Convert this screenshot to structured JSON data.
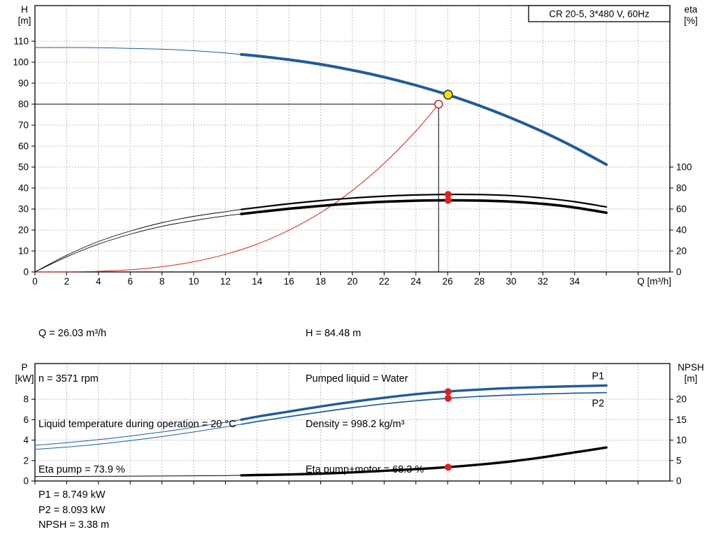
{
  "colors": {
    "curve_blue": "#1f5c99",
    "curve_black": "#000000",
    "curve_red": "#dd2222",
    "marker_red": "#e02020",
    "duty_yellow": "#ffe000",
    "grid": "#aaaaaa",
    "text": "#000000"
  },
  "readout_top": {
    "left": [
      "Q = 26.03 m³/h",
      "n = 3571 rpm",
      "Liquid temperature during operation = 20 °C",
      "Eta pump = 73.9 %"
    ],
    "right": [
      "H = 84.48 m",
      "Pumped liquid = Water",
      "Density = 998.2 kg/m³",
      "Eta pump+motor = 68.3 %"
    ]
  },
  "readout_bottom": [
    "P1 = 8.749 kW",
    "P2 = 8.093 kW",
    "NPSH = 3.38 m"
  ],
  "chart_data": [
    {
      "type": "line",
      "title": "CR 20-5, 3*480 V, 60Hz",
      "x_axis": {
        "label": "Q [m³/h]",
        "min": 0,
        "max": 40,
        "grid_step": 2,
        "label_max": 34,
        "tick_max": 38
      },
      "y_left": {
        "label": [
          "H",
          "[m]"
        ],
        "min": 0,
        "max": 127,
        "step": 10,
        "tick_max": 110
      },
      "y_right": {
        "label": [
          "eta",
          "[%]"
        ],
        "ticks": [
          0,
          20,
          40,
          60,
          80,
          100
        ],
        "to_left": 0.5
      },
      "series": [
        {
          "name": "head-curve",
          "color": "curve_blue",
          "axis": "left",
          "thin_to": 13,
          "width_thin": 1,
          "width_thick": 4,
          "points": [
            [
              0,
              107
            ],
            [
              2,
              107
            ],
            [
              4,
              106.9
            ],
            [
              6,
              106.6
            ],
            [
              8,
              106.2
            ],
            [
              10,
              105.5
            ],
            [
              12,
              104.4
            ],
            [
              13,
              103.7
            ],
            [
              14,
              103
            ],
            [
              16,
              101.2
            ],
            [
              18,
              99
            ],
            [
              20,
              96.2
            ],
            [
              22,
              92.9
            ],
            [
              24,
              89
            ],
            [
              26,
              84.5
            ],
            [
              28,
              79.3
            ],
            [
              30,
              73.4
            ],
            [
              32,
              66.8
            ],
            [
              34,
              59.4
            ],
            [
              36,
              51.2
            ]
          ]
        },
        {
          "name": "system-curve",
          "color": "curve_red",
          "axis": "left",
          "width_thin": 1,
          "width_thick": 1,
          "points": [
            [
              0,
              0
            ],
            [
              2,
              0.04
            ],
            [
              4,
              0.31
            ],
            [
              6,
              1.05
            ],
            [
              8,
              2.49
            ],
            [
              10,
              4.86
            ],
            [
              12,
              8.4
            ],
            [
              14,
              13.3
            ],
            [
              16,
              19.9
            ],
            [
              18,
              28.3
            ],
            [
              20,
              38.9
            ],
            [
              22,
              51.8
            ],
            [
              24,
              67.2
            ],
            [
              25.43,
              80
            ]
          ]
        },
        {
          "name": "eta-pump-curve",
          "color": "curve_black",
          "axis": "right",
          "thin_to": 13,
          "width_thin": 0.9,
          "width_thick": 2.2,
          "points": [
            [
              0,
              0
            ],
            [
              2,
              16
            ],
            [
              4,
              29
            ],
            [
              6,
              39
            ],
            [
              8,
              47
            ],
            [
              10,
              53
            ],
            [
              12,
              57.5
            ],
            [
              13,
              59.6
            ],
            [
              14,
              61.5
            ],
            [
              16,
              65
            ],
            [
              18,
              68
            ],
            [
              20,
              70.5
            ],
            [
              22,
              72.3
            ],
            [
              24,
              73.4
            ],
            [
              26,
              73.9
            ],
            [
              28,
              73.8
            ],
            [
              30,
              72.8
            ],
            [
              32,
              70.5
            ],
            [
              34,
              67
            ],
            [
              36,
              62
            ]
          ]
        },
        {
          "name": "eta-pump-motor-curve",
          "color": "curve_black",
          "axis": "right",
          "thin_to": 13,
          "width_thin": 0.9,
          "width_thick": 3.6,
          "points": [
            [
              0,
              0
            ],
            [
              2,
              14.5
            ],
            [
              4,
              26.5
            ],
            [
              6,
              36
            ],
            [
              8,
              43.5
            ],
            [
              10,
              49
            ],
            [
              12,
              53.5
            ],
            [
              13,
              55.3
            ],
            [
              14,
              57
            ],
            [
              16,
              60.3
            ],
            [
              18,
              63
            ],
            [
              20,
              65.3
            ],
            [
              22,
              66.9
            ],
            [
              24,
              67.9
            ],
            [
              26,
              68.3
            ],
            [
              28,
              68.1
            ],
            [
              30,
              67.1
            ],
            [
              32,
              64.9
            ],
            [
              34,
              61.5
            ],
            [
              36,
              56.5
            ]
          ]
        }
      ],
      "guides": {
        "h": 80,
        "q": 25.43
      },
      "markers": [
        {
          "kind": "red-dot",
          "axis": "right",
          "q": 26.03,
          "v": 73.9
        },
        {
          "kind": "red-dot",
          "axis": "right",
          "q": 26.03,
          "v": 68.3
        },
        {
          "kind": "open-red",
          "axis": "left",
          "q": 25.43,
          "v": 80
        },
        {
          "kind": "duty-yellow",
          "axis": "left",
          "q": 26.03,
          "v": 84.48
        }
      ]
    },
    {
      "type": "line",
      "x_axis": {
        "min": 0,
        "max": 40,
        "grid_step": 2,
        "tick_max": 38
      },
      "y_left": {
        "label": [
          "P",
          "[kW]"
        ],
        "min": 0,
        "max": 11.5,
        "step": 2,
        "tick_max": 8
      },
      "y_right": {
        "label": [
          "NPSH",
          "[m]"
        ],
        "ticks": [
          0,
          5,
          10,
          15,
          20
        ],
        "to_left": 0.4
      },
      "series": [
        {
          "name": "p1-curve",
          "color": "curve_blue",
          "axis": "left",
          "thin_to": 13,
          "width_thin": 1,
          "width_thick": 3.4,
          "end_label": "P1",
          "label_side": "above",
          "points": [
            [
              0,
              3.5
            ],
            [
              2,
              3.75
            ],
            [
              4,
              4.05
            ],
            [
              6,
              4.4
            ],
            [
              8,
              4.8
            ],
            [
              10,
              5.25
            ],
            [
              12,
              5.75
            ],
            [
              13,
              6.0
            ],
            [
              14,
              6.3
            ],
            [
              16,
              6.8
            ],
            [
              18,
              7.3
            ],
            [
              20,
              7.75
            ],
            [
              22,
              8.15
            ],
            [
              24,
              8.5
            ],
            [
              26,
              8.76
            ],
            [
              28,
              8.95
            ],
            [
              30,
              9.1
            ],
            [
              32,
              9.2
            ],
            [
              34,
              9.28
            ],
            [
              36,
              9.35
            ]
          ]
        },
        {
          "name": "p2-curve",
          "color": "curve_blue",
          "axis": "left",
          "thin_to": 13,
          "width_thin": 1,
          "width_thick": 1.7,
          "end_label": "P2",
          "label_side": "below",
          "points": [
            [
              0,
              3.1
            ],
            [
              2,
              3.32
            ],
            [
              4,
              3.6
            ],
            [
              6,
              3.95
            ],
            [
              8,
              4.35
            ],
            [
              10,
              4.8
            ],
            [
              12,
              5.3
            ],
            [
              13,
              5.55
            ],
            [
              14,
              5.82
            ],
            [
              16,
              6.3
            ],
            [
              18,
              6.75
            ],
            [
              20,
              7.18
            ],
            [
              22,
              7.55
            ],
            [
              24,
              7.85
            ],
            [
              26,
              8.1
            ],
            [
              28,
              8.28
            ],
            [
              30,
              8.42
            ],
            [
              32,
              8.52
            ],
            [
              34,
              8.6
            ],
            [
              36,
              8.65
            ]
          ]
        },
        {
          "name": "npsh-curve",
          "color": "curve_black",
          "axis": "right",
          "thin_to": 13,
          "width_thin": 1,
          "width_thick": 3.4,
          "points": [
            [
              0,
              1.1
            ],
            [
              2,
              1.12
            ],
            [
              4,
              1.15
            ],
            [
              6,
              1.18
            ],
            [
              8,
              1.22
            ],
            [
              10,
              1.27
            ],
            [
              12,
              1.33
            ],
            [
              13,
              1.38
            ],
            [
              14,
              1.45
            ],
            [
              16,
              1.6
            ],
            [
              18,
              1.8
            ],
            [
              20,
              2.1
            ],
            [
              22,
              2.5
            ],
            [
              24,
              2.9
            ],
            [
              26,
              3.38
            ],
            [
              28,
              4.0
            ],
            [
              30,
              4.8
            ],
            [
              32,
              5.8
            ],
            [
              34,
              7.0
            ],
            [
              36,
              8.2
            ]
          ]
        }
      ],
      "markers": [
        {
          "kind": "red-dot",
          "axis": "left",
          "q": 26.03,
          "v": 8.749
        },
        {
          "kind": "red-dot",
          "axis": "left",
          "q": 26.03,
          "v": 8.093
        },
        {
          "kind": "red-dot",
          "axis": "right",
          "q": 26.03,
          "v": 3.38
        }
      ]
    }
  ]
}
